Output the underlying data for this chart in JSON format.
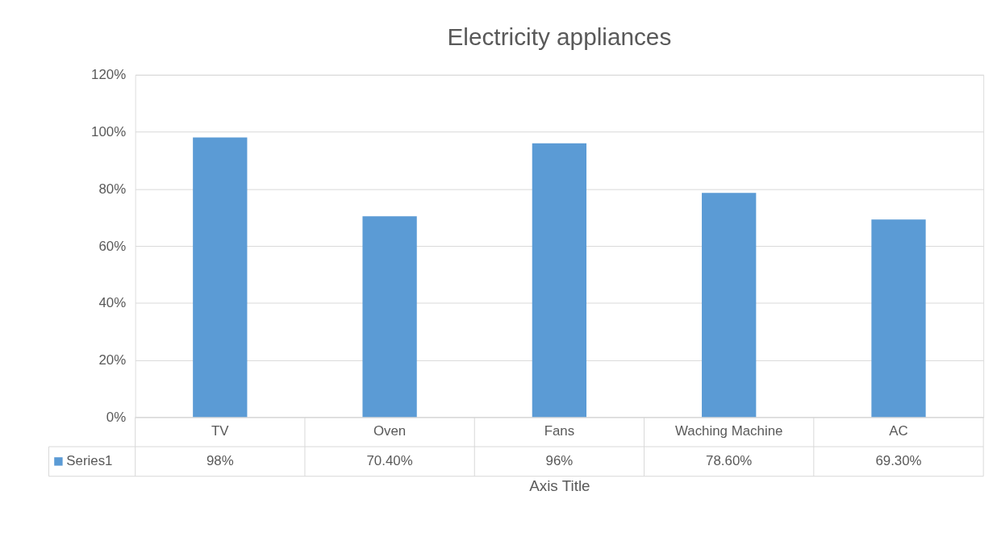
{
  "chart_data": {
    "type": "bar",
    "title": "Electricity appliances",
    "xlabel": "Axis Title",
    "categories": [
      "TV",
      "Oven",
      "Fans",
      "Waching Machine",
      "AC"
    ],
    "series": [
      {
        "name": "Series1",
        "color": "#5b9bd5",
        "values": [
          98,
          70.4,
          96,
          78.6,
          69.3
        ],
        "value_labels": [
          "98%",
          "70.40%",
          "96%",
          "78.60%",
          "69.30%"
        ]
      }
    ],
    "ylim": [
      0,
      120
    ],
    "yticks": [
      {
        "value": 0,
        "label": "0%"
      },
      {
        "value": 20,
        "label": "20%"
      },
      {
        "value": 40,
        "label": "40%"
      },
      {
        "value": 60,
        "label": "60%"
      },
      {
        "value": 80,
        "label": "80%"
      },
      {
        "value": 100,
        "label": "100%"
      },
      {
        "value": 120,
        "label": "120%"
      }
    ],
    "grid": "y"
  }
}
